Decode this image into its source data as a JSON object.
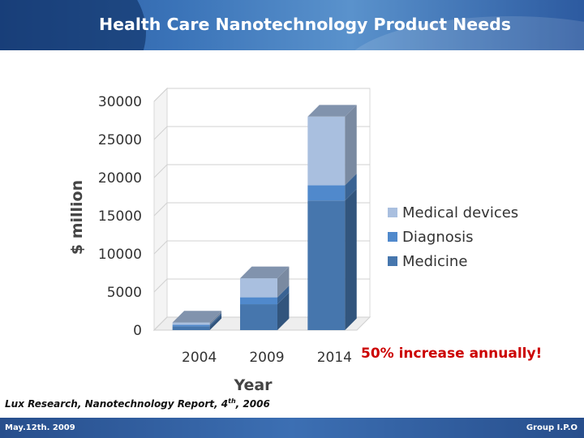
{
  "slide": {
    "title": "Health Care Nanotechnology Product Needs",
    "citation_main": "Lux Research, Nanotechnology Report, 4",
    "citation_sup": "th",
    "citation_tail": ", 2006",
    "annotation": "50% increase annually!",
    "footer_left": "May.12th. 2009",
    "footer_right": "Group I.P.O"
  },
  "colors": {
    "medicine": "#4676ad",
    "diagnosis": "#5089cc",
    "medical_devices": "#a9bfdf",
    "header": "#2c5aa0",
    "annotation": "#cc0000"
  },
  "chart_data": {
    "type": "bar",
    "stacked": true,
    "three_d": true,
    "categories": [
      "2004",
      "2009",
      "2014"
    ],
    "series": [
      {
        "name": "Medicine",
        "values": [
          500,
          3400,
          17000
        ]
      },
      {
        "name": "Diagnosis",
        "values": [
          200,
          900,
          2000
        ]
      },
      {
        "name": "Medical devices",
        "values": [
          300,
          2500,
          9000
        ]
      }
    ],
    "xlabel": "Year",
    "ylabel": "$ million",
    "ylim": [
      0,
      30000
    ],
    "yticks": [
      "0",
      "5000",
      "10000",
      "15000",
      "20000",
      "25000",
      "30000"
    ],
    "legend_position": "right",
    "grid": true
  }
}
